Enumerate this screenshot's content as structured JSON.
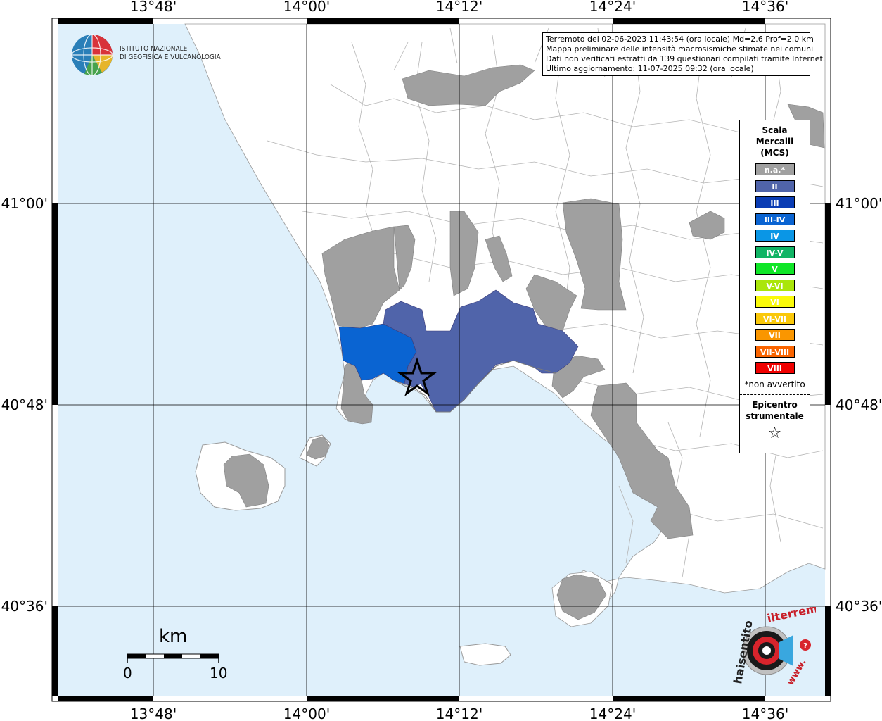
{
  "header": {
    "info_lines": [
      "Terremoto del 02-06-2023 11:43:54 (ora locale) Md=2.6 Prof=2.0 km",
      "Mappa preliminare delle intensità macrosismiche stimate nei comuni",
      "Dati non verificati estratti da 139 questionari compilati tramite Internet.",
      "Ultimo aggiornamento: 11-07-2025 09:32 (ora locale)"
    ]
  },
  "logo": {
    "institute_line1": "ISTITUTO NAZIONALE",
    "institute_line2": "DI GEOFISICA E VULCANOLOGIA"
  },
  "axes": {
    "lon_ticks": [
      "13°48'",
      "14°00'",
      "14°12'",
      "14°24'",
      "14°36'"
    ],
    "lat_ticks": [
      "41°00'",
      "40°48'",
      "40°36'"
    ]
  },
  "legend": {
    "title_line1": "Scala",
    "title_line2": "Mercalli",
    "title_line3": "(MCS)",
    "classes": [
      {
        "label": "n.a.*",
        "color": "#a0a0a0"
      },
      {
        "label": "II",
        "color": "#5064aa"
      },
      {
        "label": "III",
        "color": "#0a3cb4"
      },
      {
        "label": "III-IV",
        "color": "#0a64d2"
      },
      {
        "label": "IV",
        "color": "#0a96e6"
      },
      {
        "label": "IV-V",
        "color": "#10b464"
      },
      {
        "label": "V",
        "color": "#10e628"
      },
      {
        "label": "V-VI",
        "color": "#aae60a"
      },
      {
        "label": "VI",
        "color": "#fafa0a"
      },
      {
        "label": "VI-VII",
        "color": "#fac80a"
      },
      {
        "label": "VII",
        "color": "#fa9600"
      },
      {
        "label": "VII-VIII",
        "color": "#fa6400"
      },
      {
        "label": "VIII",
        "color": "#f00000"
      }
    ],
    "note": "*non avvertito",
    "epicenter_line1": "Epicentro",
    "epicenter_line2": "strumentale",
    "epicenter_symbol": "☆"
  },
  "scalebar": {
    "unit": "km",
    "min_label": "0",
    "max_label": "10"
  },
  "watermark": {
    "text_main": "haisentito",
    "text_accent": "ilterremoto.it",
    "text_www": "www."
  },
  "colors": {
    "sea": "#dff0fb",
    "land": "#ffffff",
    "not_felt": "#a0a0a0",
    "mcs_II": "#5064aa",
    "mcs_III_IV": "#0a64d2"
  }
}
